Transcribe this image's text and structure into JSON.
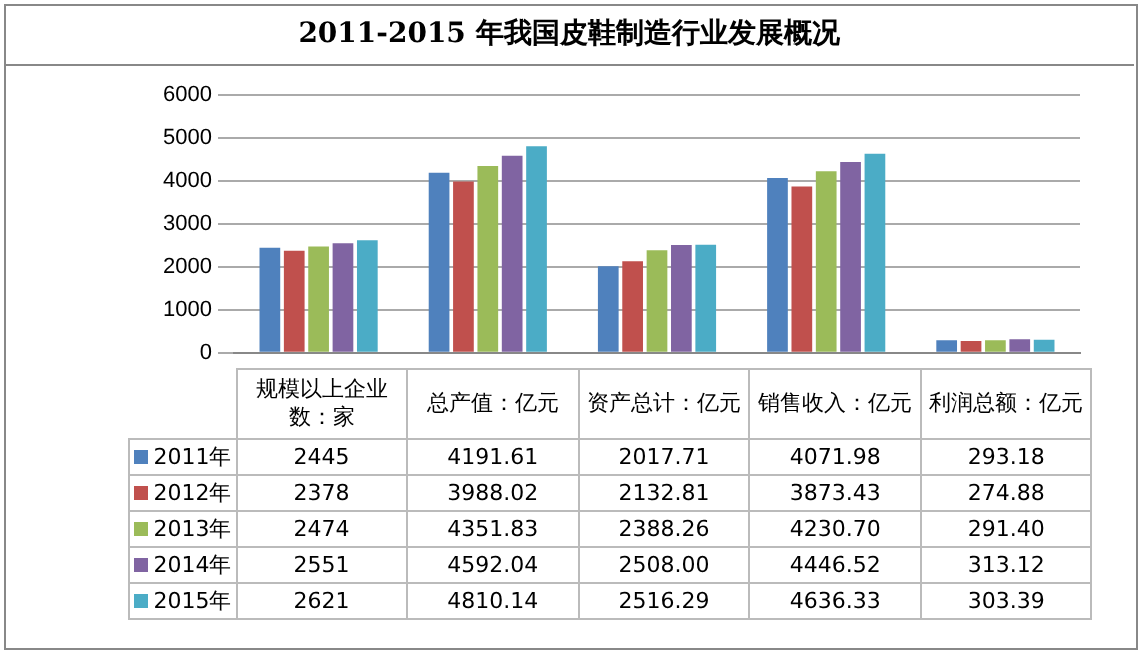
{
  "chart_data": {
    "type": "bar",
    "title": "2011-2015 年我国皮鞋制造行业发展概况",
    "categories": [
      "规模以上企业数：家",
      "总产值：亿元",
      "资产总计：亿元",
      "销售收入：亿元",
      "利润总额：亿元"
    ],
    "series": [
      {
        "name": "2011年",
        "color": "#4f81bd",
        "values": [
          2445,
          4191.61,
          2017.71,
          4071.98,
          293.18
        ],
        "value_labels": [
          "2445",
          "4191.61",
          "2017.71",
          "4071.98",
          "293.18"
        ]
      },
      {
        "name": "2012年",
        "color": "#c0504d",
        "values": [
          2378,
          3988.02,
          2132.81,
          3873.43,
          274.88
        ],
        "value_labels": [
          "2378",
          "3988.02",
          "2132.81",
          "3873.43",
          "274.88"
        ]
      },
      {
        "name": "2013年",
        "color": "#9bbb59",
        "values": [
          2474,
          4351.83,
          2388.26,
          4230.7,
          291.4
        ],
        "value_labels": [
          "2474",
          "4351.83",
          "2388.26",
          "4230.70",
          "291.40"
        ]
      },
      {
        "name": "2014年",
        "color": "#8064a2",
        "values": [
          2551,
          4592.04,
          2508,
          4446.52,
          313.12
        ],
        "value_labels": [
          "2551",
          "4592.04",
          "2508.00",
          "4446.52",
          "313.12"
        ]
      },
      {
        "name": "2015年",
        "color": "#4bacc6",
        "values": [
          2621,
          4810.14,
          2516.29,
          4636.33,
          303.39
        ],
        "value_labels": [
          "2621",
          "4810.14",
          "2516.29",
          "4636.33",
          "303.39"
        ]
      }
    ],
    "ylim": [
      0,
      6000
    ],
    "yticks": [
      0,
      1000,
      2000,
      3000,
      4000,
      5000,
      6000
    ],
    "grid": "y",
    "legend": "bottom left"
  }
}
